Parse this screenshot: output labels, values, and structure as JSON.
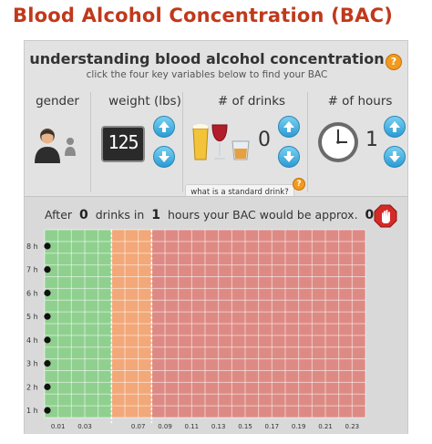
{
  "page_title": "Blood Alcohol Concentration (BAC)",
  "header": {
    "title": "understanding blood alcohol concentration",
    "subtitle": "click the four key variables below to find your BAC"
  },
  "variables": {
    "gender": {
      "label": "gender",
      "selected": "male"
    },
    "weight": {
      "label": "weight (lbs)",
      "value": "125"
    },
    "drinks": {
      "label": "# of drinks",
      "value": "0"
    },
    "hours": {
      "label": "# of hours",
      "value": "1"
    }
  },
  "standard_drink_button": "what is a standard drink?",
  "help_symbol": "?",
  "result": {
    "prefix": "After",
    "drinks": "0",
    "mid": "drinks in",
    "hours": "1",
    "suffix": "hours your BAC would be approx.",
    "bac": "0.00"
  },
  "chart_data": {
    "type": "heatmap",
    "y_labels": [
      "8 h",
      "7 h",
      "6 h",
      "5 h",
      "4 h",
      "3 h",
      "2 h",
      "1 h"
    ],
    "x_labels": [
      "0.01",
      "0.03",
      "0.07",
      "0.09",
      "0.11",
      "0.13",
      "0.15",
      "0.17",
      "0.19",
      "0.21",
      "0.23"
    ],
    "x_labels_positions_data": [
      0.01,
      0.03,
      0.07,
      0.09,
      0.11,
      0.13,
      0.15,
      0.17,
      0.19,
      0.21,
      0.23
    ],
    "thresholds": [
      {
        "value": "0.05",
        "color": "#f28c28"
      },
      {
        "value": "0.08",
        "color": "#e0442b"
      }
    ],
    "zones": [
      {
        "name": "green",
        "from": 0.0,
        "to": 0.05,
        "color": "#8fd08f"
      },
      {
        "name": "orange",
        "from": 0.05,
        "to": 0.08,
        "color": "#f2a878"
      },
      {
        "name": "red",
        "from": 0.08,
        "to": 0.24,
        "color": "#de8a84"
      }
    ],
    "xlim": [
      0.0,
      0.24
    ],
    "current_bac": 0.0
  }
}
